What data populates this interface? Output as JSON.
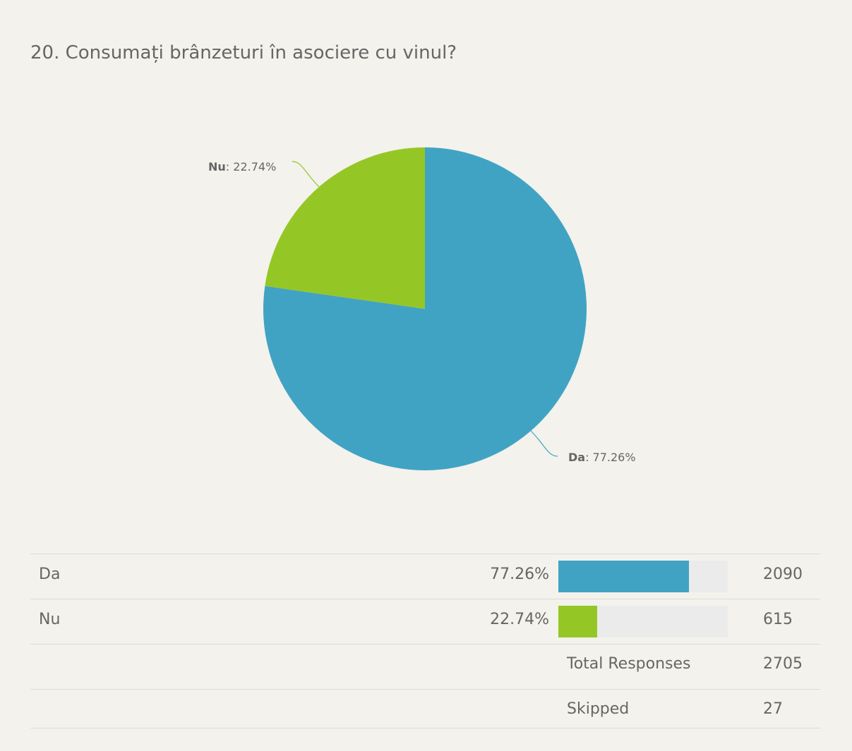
{
  "question": {
    "title": "20. Consumați brânzeturi în asociere cu vinul?"
  },
  "colors": {
    "Da": "#41a3c3",
    "Nu": "#94c725",
    "track": "#ebebeb"
  },
  "chart_data": {
    "type": "pie",
    "title": "20. Consumați brânzeturi în asociere cu vinul?",
    "slices": [
      {
        "label": "Da",
        "value": 77.26,
        "label_text": ": 77.26%"
      },
      {
        "label": "Nu",
        "value": 22.74,
        "label_text": ": 22.74%"
      }
    ]
  },
  "table": {
    "rows": [
      {
        "label": "Da",
        "percent": "77.26%",
        "fraction": 0.7726,
        "count": "2090"
      },
      {
        "label": "Nu",
        "percent": "22.74%",
        "fraction": 0.2274,
        "count": "615"
      }
    ],
    "total_label": "Total Responses",
    "total_value": "2705",
    "skipped_label": "Skipped",
    "skipped_value": "27"
  }
}
